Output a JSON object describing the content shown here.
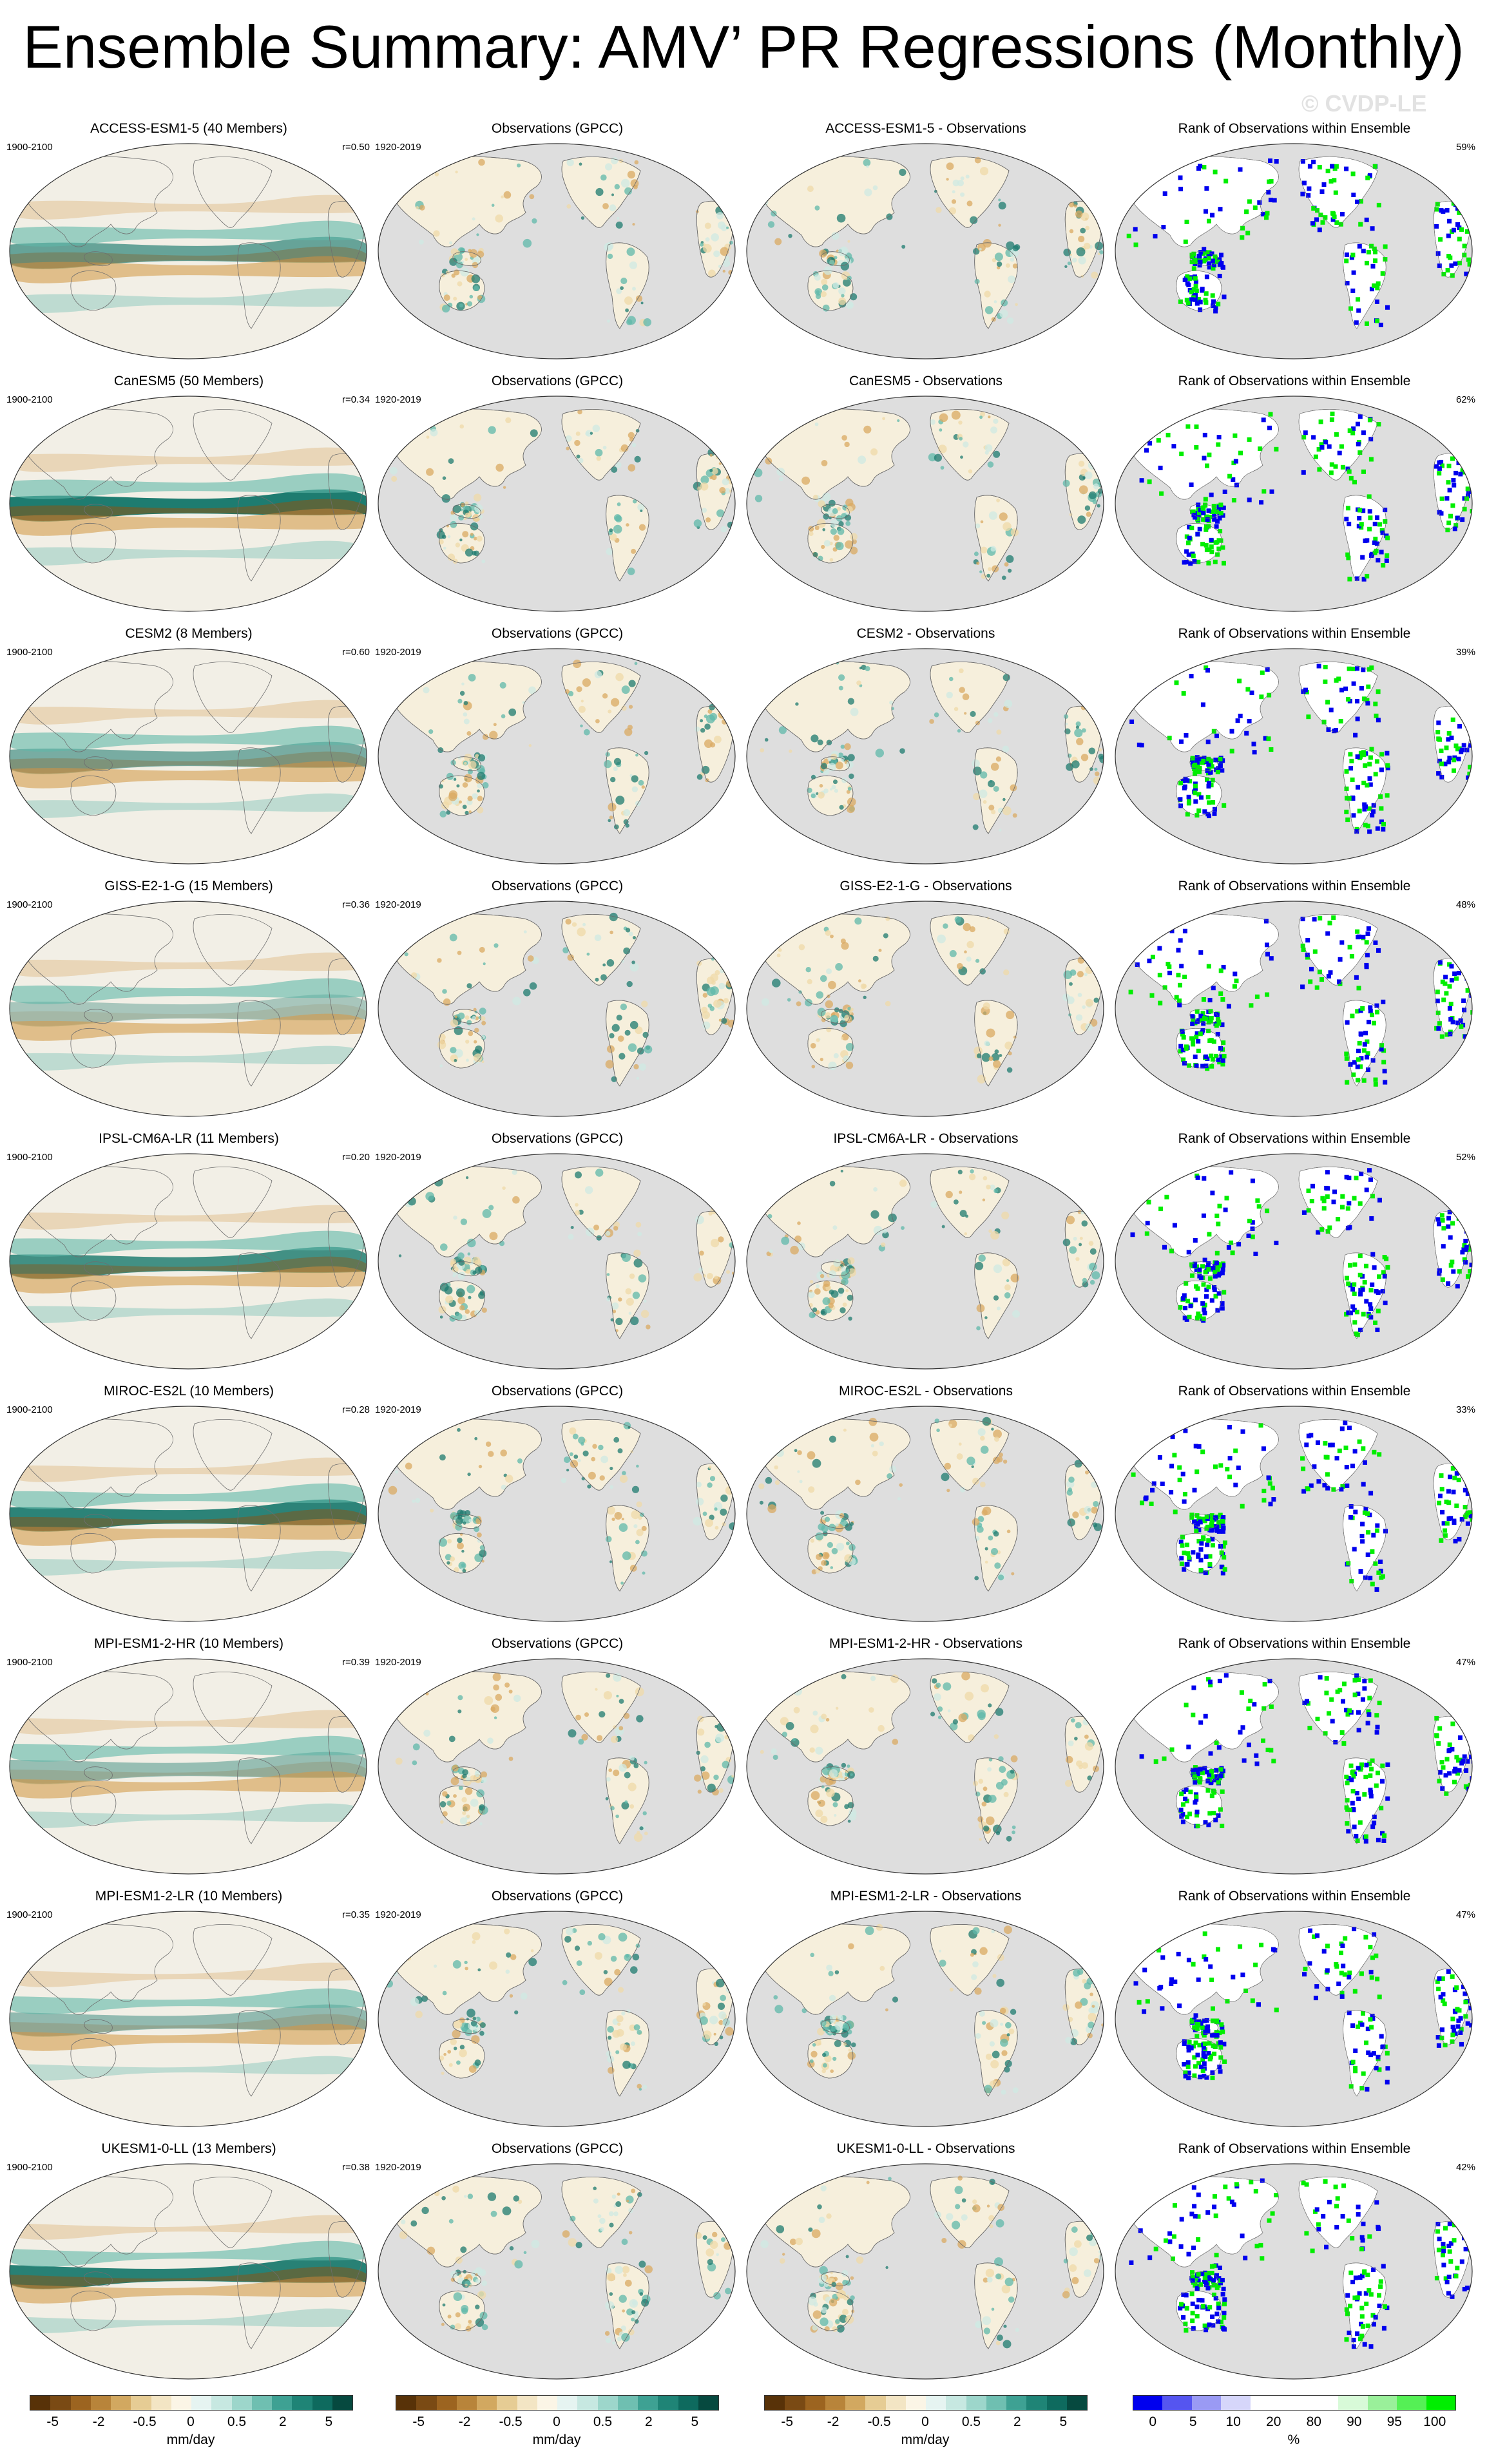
{
  "title": "Ensemble Summary: AMV’ PR Regressions (Monthly)",
  "watermark": "© CVDP-LE",
  "rows": [
    {
      "model": "ACCESS-ESM1-5 (40 Members)",
      "model_period": "1900-2100",
      "r": "r=0.50",
      "obs_title": "Observations (GPCC)",
      "obs_period": "1920-2019",
      "diff_title": "ACCESS-ESM1-5 - Observations",
      "rank_title": "Rank of Observations within Ensemble",
      "rank_pct": "59%"
    },
    {
      "model": "CanESM5 (50 Members)",
      "model_period": "1900-2100",
      "r": "r=0.34",
      "obs_title": "Observations (GPCC)",
      "obs_period": "1920-2019",
      "diff_title": "CanESM5 - Observations",
      "rank_title": "Rank of Observations within Ensemble",
      "rank_pct": "62%"
    },
    {
      "model": "CESM2 (8 Members)",
      "model_period": "1900-2100",
      "r": "r=0.60",
      "obs_title": "Observations (GPCC)",
      "obs_period": "1920-2019",
      "diff_title": "CESM2 - Observations",
      "rank_title": "Rank of Observations within Ensemble",
      "rank_pct": "39%"
    },
    {
      "model": "GISS-E2-1-G (15 Members)",
      "model_period": "1900-2100",
      "r": "r=0.36",
      "obs_title": "Observations (GPCC)",
      "obs_period": "1920-2019",
      "diff_title": "GISS-E2-1-G - Observations",
      "rank_title": "Rank of Observations within Ensemble",
      "rank_pct": "48%"
    },
    {
      "model": "IPSL-CM6A-LR (11 Members)",
      "model_period": "1900-2100",
      "r": "r=0.20",
      "obs_title": "Observations (GPCC)",
      "obs_period": "1920-2019",
      "diff_title": "IPSL-CM6A-LR - Observations",
      "rank_title": "Rank of Observations within Ensemble",
      "rank_pct": "52%"
    },
    {
      "model": "MIROC-ES2L (10 Members)",
      "model_period": "1900-2100",
      "r": "r=0.28",
      "obs_title": "Observations (GPCC)",
      "obs_period": "1920-2019",
      "diff_title": "MIROC-ES2L - Observations",
      "rank_title": "Rank of Observations within Ensemble",
      "rank_pct": "33%"
    },
    {
      "model": "MPI-ESM1-2-HR (10 Members)",
      "model_period": "1900-2100",
      "r": "r=0.39",
      "obs_title": "Observations (GPCC)",
      "obs_period": "1920-2019",
      "diff_title": "MPI-ESM1-2-HR - Observations",
      "rank_title": "Rank of Observations within Ensemble",
      "rank_pct": "47%"
    },
    {
      "model": "MPI-ESM1-2-LR (10 Members)",
      "model_period": "1900-2100",
      "r": "r=0.35",
      "obs_title": "Observations (GPCC)",
      "obs_period": "1920-2019",
      "diff_title": "MPI-ESM1-2-LR - Observations",
      "rank_title": "Rank of Observations within Ensemble",
      "rank_pct": "47%"
    },
    {
      "model": "UKESM1-0-LL (13 Members)",
      "model_period": "1900-2100",
      "r": "r=0.38",
      "obs_title": "Observations (GPCC)",
      "obs_period": "1920-2019",
      "diff_title": "UKESM1-0-LL - Observations",
      "rank_title": "Rank of Observations within Ensemble",
      "rank_pct": "42%"
    }
  ],
  "colors": {
    "ocean_model": "#f2efe6",
    "land_missing": "#dedede",
    "coast": "#6e6e6e",
    "wet_strong": "#1d7b6f",
    "wet_mid": "#5fb8a9",
    "dry_strong": "#8a5414",
    "dry_mid": "#d9aa62",
    "rank_low": "#0000ee",
    "rank_high": "#00ee00"
  },
  "colorbars": [
    {
      "id": "model",
      "ticks": [
        "-5",
        "-2",
        "-0.5",
        "0",
        "0.5",
        "2",
        "5"
      ],
      "unit": "mm/day",
      "colors": [
        "#583208",
        "#7a4a14",
        "#9c6420",
        "#b8843a",
        "#d2a860",
        "#e6cc94",
        "#f3e5c4",
        "#fbf5e6",
        "#e6f4f1",
        "#c7e8e1",
        "#9dd6cb",
        "#6fbfb1",
        "#3ea193",
        "#1f8476",
        "#0e6a5e",
        "#06493f"
      ]
    },
    {
      "id": "obs",
      "ticks": [
        "-5",
        "-2",
        "-0.5",
        "0",
        "0.5",
        "2",
        "5"
      ],
      "unit": "mm/day",
      "colors": [
        "#583208",
        "#7a4a14",
        "#9c6420",
        "#b8843a",
        "#d2a860",
        "#e6cc94",
        "#f3e5c4",
        "#fbf5e6",
        "#e6f4f1",
        "#c7e8e1",
        "#9dd6cb",
        "#6fbfb1",
        "#3ea193",
        "#1f8476",
        "#0e6a5e",
        "#06493f"
      ]
    },
    {
      "id": "diff",
      "ticks": [
        "-5",
        "-2",
        "-0.5",
        "0",
        "0.5",
        "2",
        "5"
      ],
      "unit": "mm/day",
      "colors": [
        "#583208",
        "#7a4a14",
        "#9c6420",
        "#b8843a",
        "#d2a860",
        "#e6cc94",
        "#f3e5c4",
        "#fbf5e6",
        "#e6f4f1",
        "#c7e8e1",
        "#9dd6cb",
        "#6fbfb1",
        "#3ea193",
        "#1f8476",
        "#0e6a5e",
        "#06493f"
      ]
    },
    {
      "id": "rank",
      "ticks": [
        "0",
        "5",
        "10",
        "20",
        "80",
        "90",
        "95",
        "100"
      ],
      "unit": "%",
      "colors": [
        "#0000ee",
        "#5555f0",
        "#9a9af4",
        "#d6d6fa",
        "#ffffff",
        "#ffffff",
        "#ffffff",
        "#d8fad8",
        "#9af09a",
        "#55f055",
        "#00ee00"
      ]
    }
  ]
}
